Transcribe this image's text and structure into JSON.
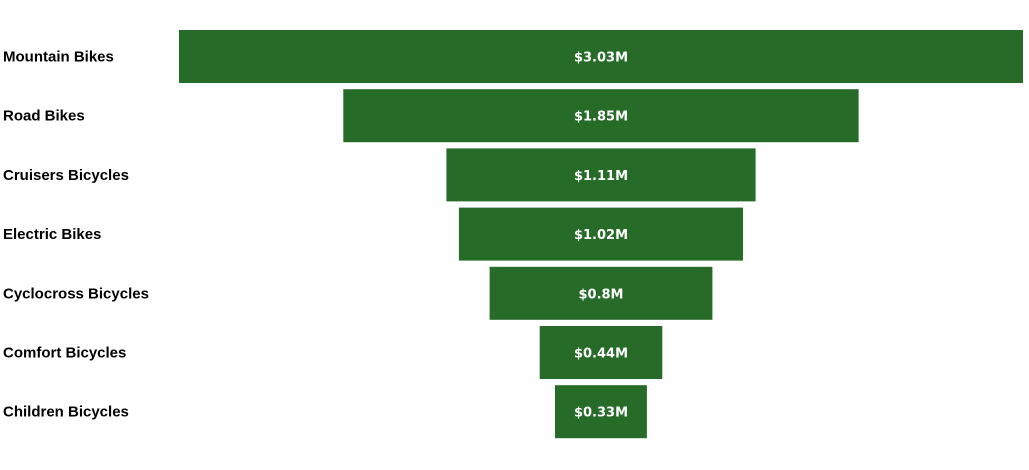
{
  "chart_data": {
    "type": "funnel",
    "orientation": "horizontal",
    "bar_color": "#276b29",
    "label_text_color": "#ffffff",
    "category_text_color": "#000000",
    "categories": [
      "Mountain Bikes",
      "Road Bikes",
      "Cruisers Bicycles",
      "Electric Bikes",
      "Cyclocross Bicycles",
      "Comfort Bicycles",
      "Children Bicycles"
    ],
    "values": [
      3.03,
      1.85,
      1.11,
      1.02,
      0.8,
      0.44,
      0.33
    ],
    "value_unit": "M USD",
    "data_labels": [
      "$3.03M",
      "$1.85M",
      "$1.11M",
      "$1.02M",
      "$0.8M",
      "$0.44M",
      "$0.33M"
    ],
    "title": "",
    "legend": "none",
    "grid": false
  }
}
